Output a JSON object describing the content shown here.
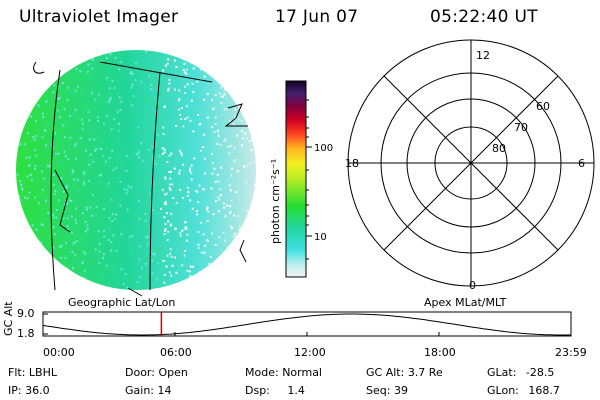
{
  "header": {
    "instrument": "Ultraviolet Imager",
    "date": "17 Jun 07",
    "time": "05:22:40 UT"
  },
  "colorbar": {
    "unit_label": "photon cm⁻²s⁻¹",
    "ticks": [
      {
        "value": "100"
      },
      {
        "value": "10"
      }
    ]
  },
  "polar_plot": {
    "mlt_labels": {
      "top": "12",
      "left": "18",
      "right": "6",
      "bottom": "0"
    },
    "lat_labels": [
      "60",
      "70",
      "80"
    ]
  },
  "panel_labels": {
    "left": "Geographic Lat/Lon",
    "right": "Apex MLat/MLT"
  },
  "orbit_plot": {
    "ylabel": "GC Alt",
    "yticks": [
      "9.0",
      "1.8"
    ],
    "xticks": [
      "00:00",
      "06:00",
      "12:00",
      "18:00",
      "23:59"
    ],
    "current_time_marker": "05:22:40",
    "marker_color": "#d00000"
  },
  "info": {
    "row1": [
      {
        "label": "Flt:",
        "value": "LBHL"
      },
      {
        "label": "Door:",
        "value": "Open"
      },
      {
        "label": "Mode:",
        "value": "Normal"
      },
      {
        "label": "GC Alt:",
        "value": "3.7 Re"
      },
      {
        "label": "GLat:",
        "value": "-28.5"
      }
    ],
    "row2": [
      {
        "label": "IP:",
        "value": "36.0"
      },
      {
        "label": "Gain:",
        "value": "14"
      },
      {
        "label": "Dsp:",
        "value": "1.4"
      },
      {
        "label": "Seq:",
        "value": "39"
      },
      {
        "label": "GLon:",
        "value": "168.7"
      }
    ]
  },
  "colors": {
    "high_emission": "#22dd33",
    "low_emission": "#e6ecec"
  }
}
